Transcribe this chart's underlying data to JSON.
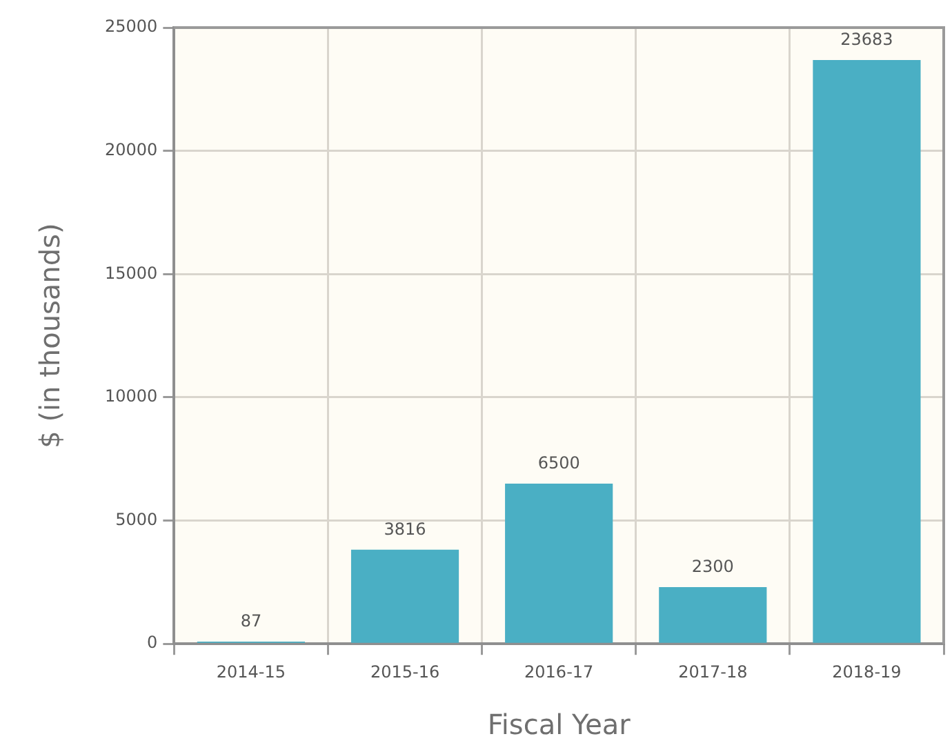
{
  "chart_data": {
    "type": "bar",
    "xlabel": "Fiscal Year",
    "ylabel": "$ (in thousands)",
    "categories": [
      "2014-15",
      "2015-16",
      "2016-17",
      "2017-18",
      "2018-19"
    ],
    "values": [
      87,
      3816,
      6500,
      2300,
      23683
    ],
    "color": "#4aafc4",
    "ylim": [
      0,
      25000
    ],
    "yticks": [
      0,
      5000,
      10000,
      15000,
      20000,
      25000
    ],
    "grid": true,
    "data_labels": true
  }
}
